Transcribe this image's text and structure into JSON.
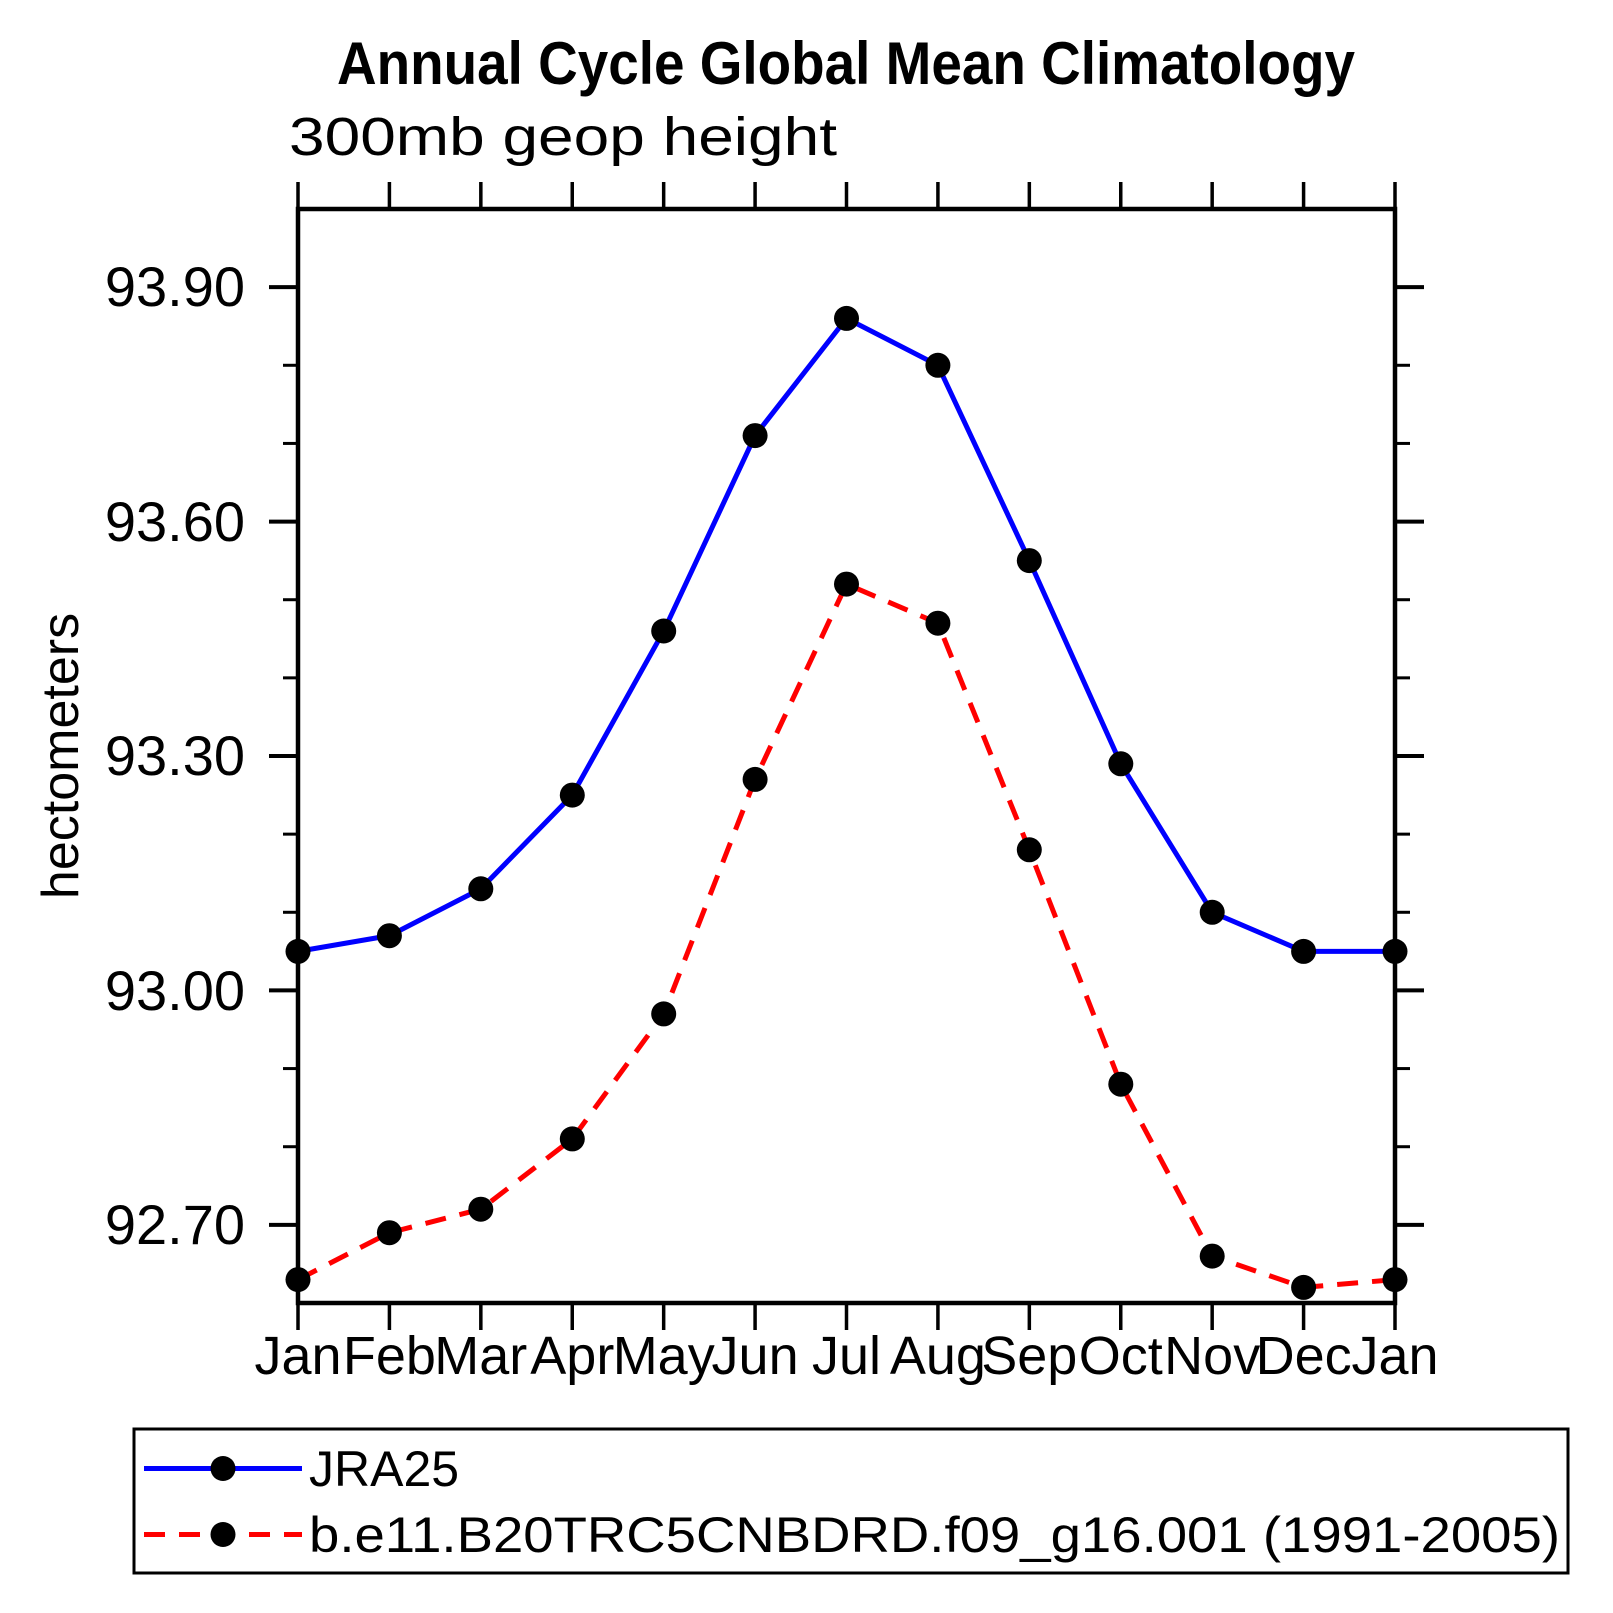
{
  "title": "Annual Cycle Global Mean Climatology",
  "subtitle": "300mb geop height",
  "axis_color": "#000000",
  "background_color": "#ffffff",
  "chart_data": {
    "type": "line",
    "title": "Annual Cycle Global Mean Climatology",
    "subtitle": "300mb geop height",
    "xlabel": "",
    "ylabel": "hectometers",
    "categories": [
      "Jan",
      "Feb",
      "Mar",
      "Apr",
      "May",
      "Jun",
      "Jul",
      "Aug",
      "Sep",
      "Oct",
      "Nov",
      "Dec",
      "Jan"
    ],
    "ylim": [
      92.6,
      94.0
    ],
    "ytick_major": [
      92.7,
      93.0,
      93.3,
      93.6,
      93.9
    ],
    "ytick_labels": [
      "92.70",
      "93.00",
      "93.30",
      "93.60",
      "93.90"
    ],
    "ytick_minor_step": 0.1,
    "grid": false,
    "legend_position": "bottom-left-box",
    "series": [
      {
        "name": "JRA25",
        "color": "#0000ff",
        "line_style": "solid",
        "marker": "filled-circle",
        "marker_color": "#000000",
        "values": [
          93.05,
          93.07,
          93.13,
          93.25,
          93.46,
          93.71,
          93.86,
          93.8,
          93.55,
          93.29,
          93.1,
          93.05,
          93.05
        ]
      },
      {
        "name": "b.e11.B20TRC5CNBDRD.f09_g16.001 (1991-2005)",
        "color": "#ff0000",
        "line_style": "dashed",
        "marker": "filled-circle",
        "marker_color": "#000000",
        "values": [
          92.63,
          92.69,
          92.72,
          92.81,
          92.97,
          93.27,
          93.52,
          93.47,
          93.18,
          92.88,
          92.66,
          92.62,
          92.63
        ]
      }
    ]
  },
  "legend": {
    "entries": [
      {
        "label": "JRA25"
      },
      {
        "label": "b.e11.B20TRC5CNBDRD.f09_g16.001 (1991-2005)"
      }
    ]
  }
}
